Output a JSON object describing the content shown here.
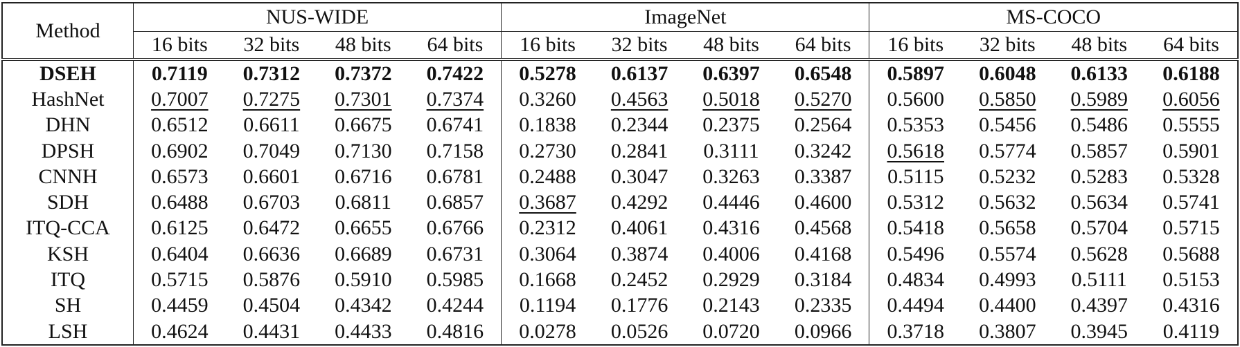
{
  "table": {
    "method_header": "Method",
    "datasets": [
      "NUS-WIDE",
      "ImageNet",
      "MS-COCO"
    ],
    "bits": [
      "16 bits",
      "32 bits",
      "48 bits",
      "64 bits"
    ],
    "rows": [
      {
        "method": "DSEH",
        "bold": true,
        "values": [
          "0.7119",
          "0.7312",
          "0.7372",
          "0.7422",
          "0.5278",
          "0.6137",
          "0.6397",
          "0.6548",
          "0.5897",
          "0.6048",
          "0.6133",
          "0.6188"
        ],
        "underlined": []
      },
      {
        "method": "HashNet",
        "bold": false,
        "values": [
          "0.7007",
          "0.7275",
          "0.7301",
          "0.7374",
          "0.3260",
          "0.4563",
          "0.5018",
          "0.5270",
          "0.5600",
          "0.5850",
          "0.5989",
          "0.6056"
        ],
        "underlined": [
          0,
          1,
          2,
          3,
          5,
          6,
          7,
          9,
          10,
          11
        ]
      },
      {
        "method": "DHN",
        "bold": false,
        "values": [
          "0.6512",
          "0.6611",
          "0.6675",
          "0.6741",
          "0.1838",
          "0.2344",
          "0.2375",
          "0.2564",
          "0.5353",
          "0.5456",
          "0.5486",
          "0.5555"
        ],
        "underlined": []
      },
      {
        "method": "DPSH",
        "bold": false,
        "values": [
          "0.6902",
          "0.7049",
          "0.7130",
          "0.7158",
          "0.2730",
          "0.2841",
          "0.3111",
          "0.3242",
          "0.5618",
          "0.5774",
          "0.5857",
          "0.5901"
        ],
        "underlined": [
          8
        ]
      },
      {
        "method": "CNNH",
        "bold": false,
        "values": [
          "0.6573",
          "0.6601",
          "0.6716",
          "0.6781",
          "0.2488",
          "0.3047",
          "0.3263",
          "0.3387",
          "0.5115",
          "0.5232",
          "0.5283",
          "0.5328"
        ],
        "underlined": []
      },
      {
        "method": "SDH",
        "bold": false,
        "values": [
          "0.6488",
          "0.6703",
          "0.6811",
          "0.6857",
          "0.3687",
          "0.4292",
          "0.4446",
          "0.4600",
          "0.5312",
          "0.5632",
          "0.5634",
          "0.5741"
        ],
        "underlined": [
          4
        ]
      },
      {
        "method": "ITQ-CCA",
        "bold": false,
        "values": [
          "0.6125",
          "0.6472",
          "0.6655",
          "0.6766",
          "0.2312",
          "0.4061",
          "0.4316",
          "0.4568",
          "0.5418",
          "0.5658",
          "0.5704",
          "0.5715"
        ],
        "underlined": []
      },
      {
        "method": "KSH",
        "bold": false,
        "values": [
          "0.6404",
          "0.6636",
          "0.6689",
          "0.6731",
          "0.3064",
          "0.3874",
          "0.4006",
          "0.4168",
          "0.5496",
          "0.5574",
          "0.5628",
          "0.5688"
        ],
        "underlined": []
      },
      {
        "method": "ITQ",
        "bold": false,
        "values": [
          "0.5715",
          "0.5876",
          "0.5910",
          "0.5985",
          "0.1668",
          "0.2452",
          "0.2929",
          "0.3184",
          "0.4834",
          "0.4993",
          "0.5111",
          "0.5153"
        ],
        "underlined": []
      },
      {
        "method": "SH",
        "bold": false,
        "values": [
          "0.4459",
          "0.4504",
          "0.4342",
          "0.4244",
          "0.1194",
          "0.1776",
          "0.2143",
          "0.2335",
          "0.4494",
          "0.4400",
          "0.4397",
          "0.4316"
        ],
        "underlined": []
      },
      {
        "method": "LSH",
        "bold": false,
        "values": [
          "0.4624",
          "0.4431",
          "0.4433",
          "0.4816",
          "0.0278",
          "0.0526",
          "0.0720",
          "0.0966",
          "0.3718",
          "0.3807",
          "0.3945",
          "0.4119"
        ],
        "underlined": []
      }
    ]
  }
}
